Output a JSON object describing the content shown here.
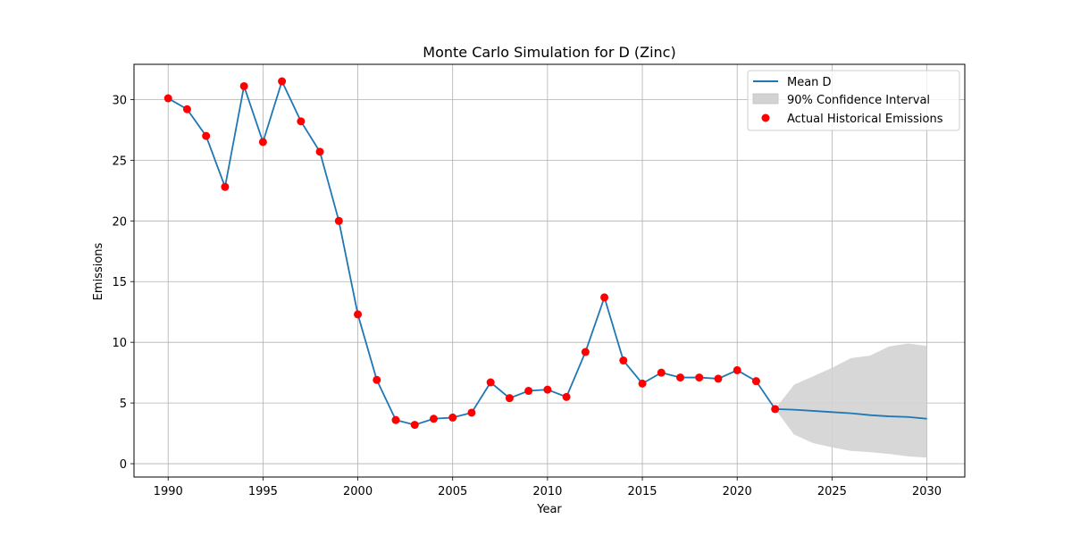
{
  "chart_data": {
    "type": "line",
    "title": "Monte Carlo Simulation for D (Zinc)",
    "xlabel": "Year",
    "ylabel": "Emissions",
    "xlim": [
      1988.2,
      2032
    ],
    "ylim": [
      -1.1,
      32.9
    ],
    "xticks": [
      1990,
      1995,
      2000,
      2005,
      2010,
      2015,
      2020,
      2025,
      2030
    ],
    "yticks": [
      0,
      5,
      10,
      15,
      20,
      25,
      30
    ],
    "grid": true,
    "legend_position": "top-right",
    "colors": {
      "mean": "#1f77b4",
      "band": "#d3d3d3",
      "actual": "#ff0000"
    },
    "series": [
      {
        "name": "Mean D",
        "type": "line",
        "x": [
          1990,
          1991,
          1992,
          1993,
          1994,
          1995,
          1996,
          1997,
          1998,
          1999,
          2000,
          2001,
          2002,
          2003,
          2004,
          2005,
          2006,
          2007,
          2008,
          2009,
          2010,
          2011,
          2012,
          2013,
          2014,
          2015,
          2016,
          2017,
          2018,
          2019,
          2020,
          2021,
          2022,
          2023,
          2024,
          2025,
          2026,
          2027,
          2028,
          2029,
          2030
        ],
        "y": [
          30.1,
          29.2,
          27.0,
          22.8,
          31.1,
          26.5,
          31.5,
          28.2,
          25.7,
          20.0,
          12.3,
          6.9,
          3.6,
          3.2,
          3.7,
          3.8,
          4.2,
          6.7,
          5.4,
          6.0,
          6.1,
          5.5,
          9.2,
          13.7,
          8.5,
          6.6,
          7.5,
          7.1,
          7.1,
          7.0,
          7.7,
          6.8,
          4.5,
          4.45,
          4.35,
          4.25,
          4.15,
          4.0,
          3.9,
          3.85,
          3.7
        ]
      },
      {
        "name": "90% Confidence Interval",
        "type": "area",
        "x": [
          2022,
          2023,
          2024,
          2025,
          2026,
          2027,
          2028,
          2029,
          2030
        ],
        "lower": [
          4.5,
          2.4,
          1.7,
          1.35,
          1.05,
          0.95,
          0.8,
          0.6,
          0.5
        ],
        "upper": [
          4.5,
          6.5,
          7.2,
          7.9,
          8.7,
          8.9,
          9.65,
          9.9,
          9.7
        ]
      },
      {
        "name": "Actual Historical Emissions",
        "type": "scatter",
        "x": [
          1990,
          1991,
          1992,
          1993,
          1994,
          1995,
          1996,
          1997,
          1998,
          1999,
          2000,
          2001,
          2002,
          2003,
          2004,
          2005,
          2006,
          2007,
          2008,
          2009,
          2010,
          2011,
          2012,
          2013,
          2014,
          2015,
          2016,
          2017,
          2018,
          2019,
          2020,
          2021,
          2022
        ],
        "y": [
          30.1,
          29.2,
          27.0,
          22.8,
          31.1,
          26.5,
          31.5,
          28.2,
          25.7,
          20.0,
          12.3,
          6.9,
          3.6,
          3.2,
          3.7,
          3.8,
          4.2,
          6.7,
          5.4,
          6.0,
          6.1,
          5.5,
          9.2,
          13.7,
          8.5,
          6.6,
          7.5,
          7.1,
          7.1,
          7.0,
          7.7,
          6.8,
          4.5
        ]
      }
    ]
  }
}
